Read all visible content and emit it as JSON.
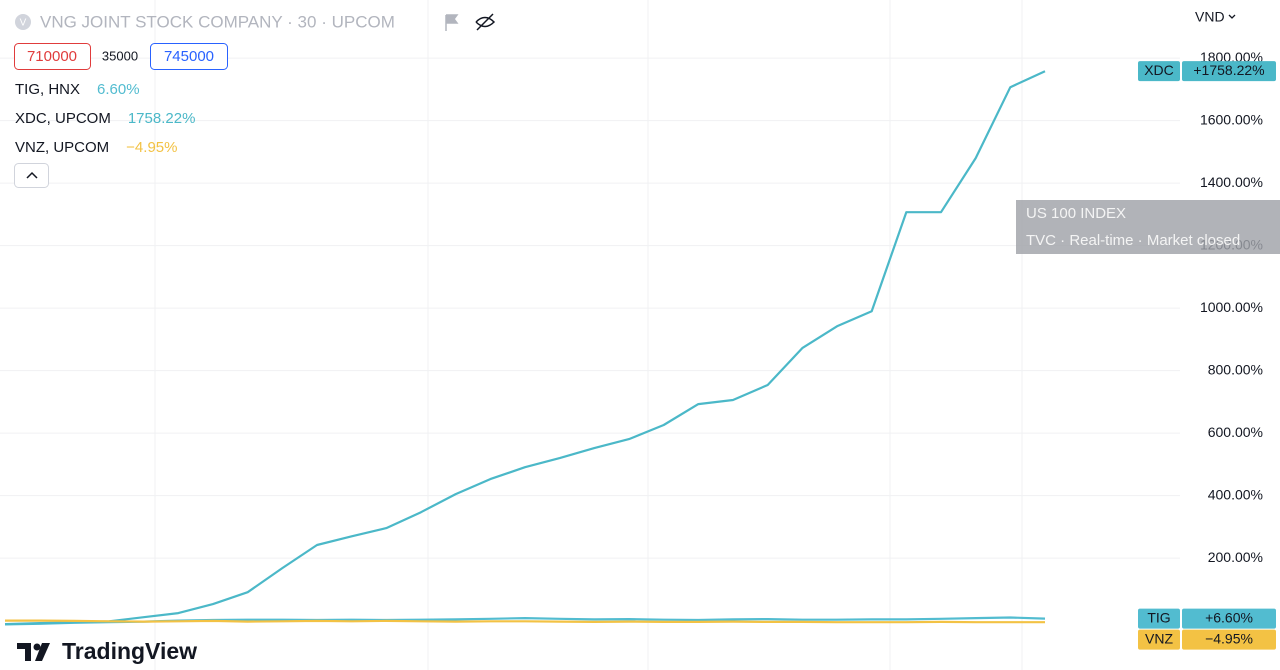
{
  "header": {
    "icon_letter": "V",
    "title": "VNG JOINT STOCK COMPANY · 30 · UPCOM",
    "bid": 710000,
    "spread": 35000,
    "ask": 745000,
    "currency": "VND"
  },
  "tooltip": {
    "title": "US 100 INDEX",
    "subtitle": "TVC · Real-time · Market closed"
  },
  "brand": "TradingView",
  "chart_data": {
    "type": "line",
    "ylim": [
      -158,
      1986
    ],
    "yticks": [
      {
        "value": 200,
        "label": "200.00%"
      },
      {
        "value": 400,
        "label": "400.00%"
      },
      {
        "value": 600,
        "label": "600.00%"
      },
      {
        "value": 800,
        "label": "800.00%"
      },
      {
        "value": 1000,
        "label": "1000.00%"
      },
      {
        "value": 1200,
        "label": "1200.00%"
      },
      {
        "value": 1400,
        "label": "1400.00%"
      },
      {
        "value": 1600,
        "label": "1600.00%"
      },
      {
        "value": 1800,
        "label": "1800.00%"
      }
    ],
    "grid": true,
    "series": [
      {
        "name": "TIG, HNX",
        "ticker": "TIG",
        "color": "#52bcd0",
        "last_value": 6.6,
        "last_label": "6.60%",
        "tag_label": "+6.60%",
        "values": [
          -12,
          -10,
          -7,
          -5,
          -3,
          0,
          2,
          3,
          3,
          2,
          3,
          2,
          3,
          4,
          6,
          8,
          6,
          4,
          5,
          3,
          2,
          4,
          5,
          3,
          3,
          4,
          4,
          6,
          8,
          10,
          6.6
        ]
      },
      {
        "name": "XDC, UPCOM",
        "ticker": "XDC",
        "color": "#4bb8c8",
        "last_value": 1758.22,
        "last_label": "1758.22%",
        "tag_label": "+1758.22%",
        "values": [
          -11,
          -8,
          -5,
          -2,
          11,
          24,
          53,
          91,
          168,
          242,
          270,
          296,
          347,
          405,
          453,
          491,
          520,
          552,
          581,
          626,
          693,
          706,
          754,
          872,
          942,
          990,
          1307,
          1307,
          1480,
          1707,
          1758.22
        ]
      },
      {
        "name": "VNZ, UPCOM",
        "ticker": "VNZ",
        "color": "#f3c244",
        "last_value": -4.95,
        "last_label": "−4.95%",
        "tag_label": "−4.95%",
        "values": [
          0,
          0,
          -1,
          -2,
          -3,
          -2,
          -1,
          -3,
          -2,
          -1,
          -2,
          -1,
          -2,
          -3,
          -2,
          -2,
          -3,
          -4,
          -3,
          -4,
          -4,
          -3,
          -4,
          -4,
          -5,
          -5,
          -5,
          -4,
          -5,
          -5,
          -4.95
        ]
      }
    ]
  }
}
